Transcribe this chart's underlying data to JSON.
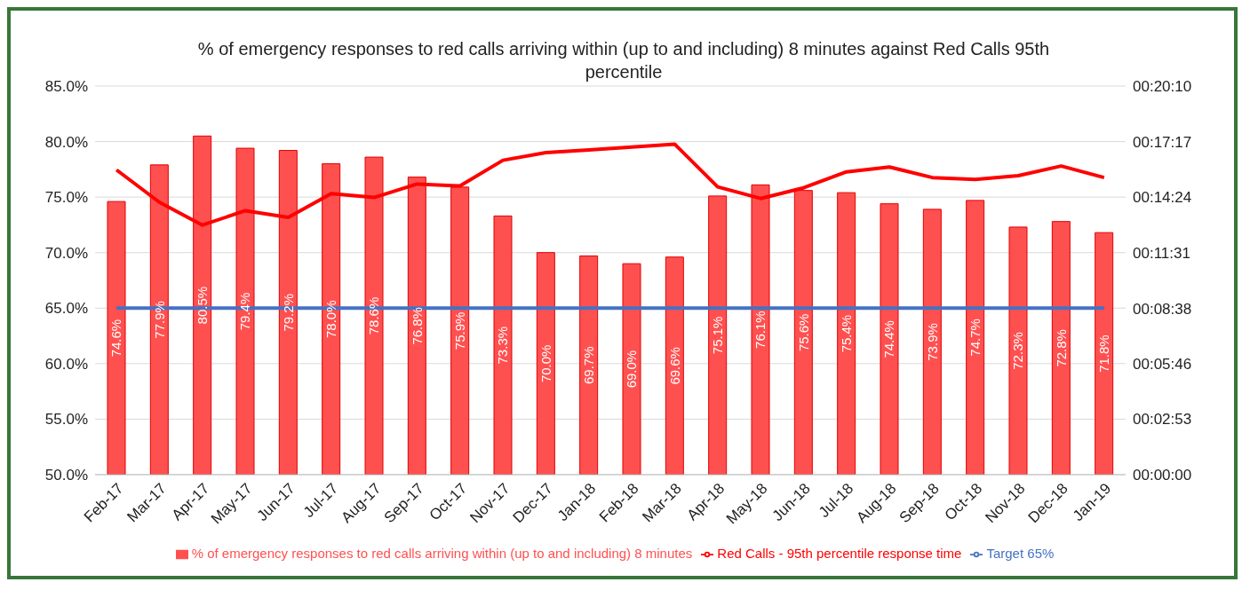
{
  "chart_data": {
    "type": "bar",
    "title": "% of emergency responses to red calls arriving within (up to and including) 8 minutes against Red Calls 95th percentile",
    "categories": [
      "Feb-17",
      "Mar-17",
      "Apr-17",
      "May-17",
      "Jun-17",
      "Jul-17",
      "Aug-17",
      "Sep-17",
      "Oct-17",
      "Nov-17",
      "Dec-17",
      "Jan-18",
      "Feb-18",
      "Mar-18",
      "Apr-18",
      "May-18",
      "Jun-18",
      "Jul-18",
      "Aug-18",
      "Sep-18",
      "Oct-18",
      "Nov-18",
      "Dec-18",
      "Jan-19"
    ],
    "series": [
      {
        "name": "% of emergency responses to red calls arriving within (up to and including) 8 minutes",
        "color": "#ff5050",
        "values": [
          74.6,
          77.9,
          80.5,
          79.4,
          79.2,
          78.0,
          78.6,
          76.8,
          75.9,
          73.3,
          70.0,
          69.7,
          69.0,
          69.6,
          75.1,
          76.1,
          75.6,
          75.4,
          74.4,
          73.9,
          74.7,
          72.3,
          72.8,
          71.8
        ],
        "value_labels": [
          "74.6%",
          "77.9%",
          "80.5%",
          "79.4%",
          "79.2%",
          "78.0%",
          "78.6%",
          "76.8%",
          "75.9%",
          "73.3%",
          "70.0%",
          "69.7%",
          "69.0%",
          "69.6%",
          "75.1%",
          "76.1%",
          "75.6%",
          "75.4%",
          "74.4%",
          "73.9%",
          "74.7%",
          "72.3%",
          "72.8%",
          "71.8%"
        ]
      },
      {
        "name": "Target 65%",
        "type": "line",
        "color": "#4472c4",
        "values": [
          65,
          65,
          65,
          65,
          65,
          65,
          65,
          65,
          65,
          65,
          65,
          65,
          65,
          65,
          65,
          65,
          65,
          65,
          65,
          65,
          65,
          65,
          65,
          65
        ]
      },
      {
        "name": "Red Calls - 95th percentile response time",
        "type": "line",
        "axis": "y2",
        "color": "#ff0000",
        "values": [
          949,
          848,
          777,
          822,
          801,
          875,
          863,
          905,
          899,
          979,
          1003,
          1011,
          1020,
          1029,
          896,
          860,
          893,
          943,
          958,
          925,
          919,
          931,
          961,
          925
        ]
      }
    ],
    "ylim": [
      50,
      85
    ],
    "yticks": [
      {
        "value": 50,
        "label": "50.0%"
      },
      {
        "value": 55,
        "label": "55.0%"
      },
      {
        "value": 60,
        "label": "60.0%"
      },
      {
        "value": 65,
        "label": "65.0%"
      },
      {
        "value": 70,
        "label": "70.0%"
      },
      {
        "value": 75,
        "label": "75.0%"
      },
      {
        "value": 80,
        "label": "80.0%"
      },
      {
        "value": 85,
        "label": "85.0%"
      }
    ],
    "y2lim": [
      0,
      1210
    ],
    "y2ticks": [
      {
        "value": 0,
        "label": "00:00:00"
      },
      {
        "value": 173,
        "label": "00:02:53"
      },
      {
        "value": 346,
        "label": "00:05:46"
      },
      {
        "value": 518,
        "label": "00:08:38"
      },
      {
        "value": 691,
        "label": "00:11:31"
      },
      {
        "value": 864,
        "label": "00:14:24"
      },
      {
        "value": 1037,
        "label": "00:17:17"
      },
      {
        "value": 1210,
        "label": "00:20:10"
      }
    ],
    "grid": "y",
    "legend": "bottom",
    "marker": "none",
    "line_style": "solid"
  }
}
